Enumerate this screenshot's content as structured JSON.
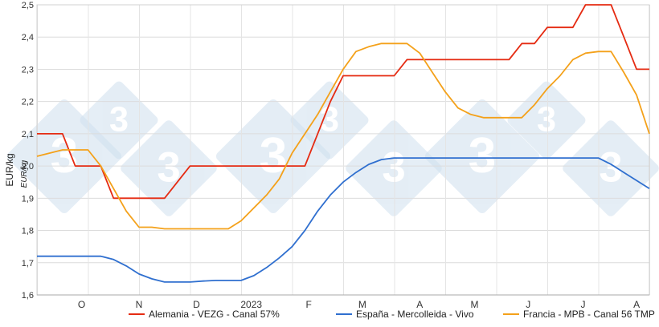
{
  "chart_data": {
    "type": "line",
    "title": "",
    "xlabel": "",
    "ylabel": "EUR/kg",
    "unit_label": "EUR/kg",
    "ylim": [
      1.6,
      2.5
    ],
    "yticks": [
      "1,6",
      "1,7",
      "1,8",
      "1,9",
      "2,0",
      "2,1",
      "2,2",
      "2,3",
      "2,4",
      "2,5"
    ],
    "xlim": [
      0,
      48
    ],
    "x_categories": [
      {
        "label": "O",
        "x": 3.5
      },
      {
        "label": "N",
        "x": 8.0
      },
      {
        "label": "D",
        "x": 12.5
      },
      {
        "label": "2023",
        "x": 16.8
      },
      {
        "label": "F",
        "x": 21.3
      },
      {
        "label": "M",
        "x": 25.5
      },
      {
        "label": "A",
        "x": 30.0
      },
      {
        "label": "M",
        "x": 34.3
      },
      {
        "label": "J",
        "x": 38.5
      },
      {
        "label": "J",
        "x": 42.8
      },
      {
        "label": "A",
        "x": 47.0
      }
    ],
    "grid": true,
    "legend_position": "bottom",
    "series": [
      {
        "name": "Alemania - VEZG - Canal 57%",
        "color": "#e52b12",
        "x": [
          0,
          2,
          3,
          5,
          6,
          9,
          10,
          12,
          13,
          21,
          22,
          23,
          24,
          28,
          29,
          37,
          38,
          39,
          40,
          42,
          43,
          45,
          46,
          47,
          48
        ],
        "y": [
          2.1,
          2.1,
          2.0,
          2.0,
          1.9,
          1.9,
          1.9,
          2.0,
          2.0,
          2.0,
          2.1,
          2.2,
          2.28,
          2.28,
          2.33,
          2.33,
          2.38,
          2.38,
          2.43,
          2.43,
          2.5,
          2.5,
          2.4,
          2.3,
          2.3
        ]
      },
      {
        "name": "España - Mercolleida - Vivo",
        "color": "#2f6fcf",
        "x": [
          0,
          5,
          6,
          7,
          8,
          9,
          10,
          11,
          12,
          13,
          14,
          15,
          16,
          17,
          18,
          19,
          20,
          21,
          22,
          23,
          24,
          25,
          26,
          27,
          28,
          29,
          30,
          31,
          33,
          36,
          40,
          44,
          45,
          46,
          48
        ],
        "y": [
          1.72,
          1.72,
          1.71,
          1.69,
          1.665,
          1.65,
          1.64,
          1.64,
          1.64,
          1.643,
          1.645,
          1.645,
          1.645,
          1.66,
          1.685,
          1.715,
          1.75,
          1.8,
          1.86,
          1.91,
          1.95,
          1.98,
          2.005,
          2.02,
          2.025,
          2.025,
          2.025,
          2.025,
          2.025,
          2.025,
          2.025,
          2.025,
          2.005,
          1.98,
          1.93
        ]
      },
      {
        "name": "Francia - MPB - Canal 56 TMP",
        "color": "#f4a11a",
        "x": [
          0,
          1,
          2,
          3,
          4,
          5,
          6,
          7,
          8,
          9,
          10,
          12,
          14,
          15,
          16,
          17,
          18,
          19,
          20,
          21,
          22,
          23,
          24,
          25,
          26,
          27,
          28,
          29,
          30,
          31,
          32,
          33,
          34,
          35,
          36,
          37,
          38,
          39,
          40,
          41,
          42,
          43,
          44,
          45,
          46,
          47,
          48
        ],
        "y": [
          2.03,
          2.04,
          2.05,
          2.05,
          2.05,
          2.0,
          1.93,
          1.86,
          1.81,
          1.81,
          1.805,
          1.805,
          1.805,
          1.805,
          1.83,
          1.87,
          1.91,
          1.96,
          2.04,
          2.1,
          2.16,
          2.23,
          2.3,
          2.355,
          2.37,
          2.38,
          2.38,
          2.38,
          2.35,
          2.29,
          2.23,
          2.18,
          2.16,
          2.15,
          2.15,
          2.15,
          2.15,
          2.19,
          2.24,
          2.28,
          2.33,
          2.35,
          2.355,
          2.355,
          2.29,
          2.22,
          2.1
        ]
      }
    ]
  },
  "watermark": {
    "glyph": "3",
    "color": "#cfe0ee"
  }
}
